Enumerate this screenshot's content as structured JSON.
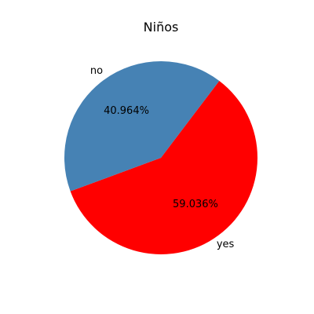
{
  "chart_data": {
    "type": "pie",
    "title": "Niños",
    "labels": [
      "yes",
      "no"
    ],
    "values": [
      59.036,
      40.964
    ],
    "percent_labels": [
      "59.036%",
      "40.964%"
    ],
    "colors": [
      "#ff0000",
      "#4682b4"
    ],
    "start_angle_deg": 200.3,
    "direction": "counterclockwise",
    "legend": "none"
  }
}
